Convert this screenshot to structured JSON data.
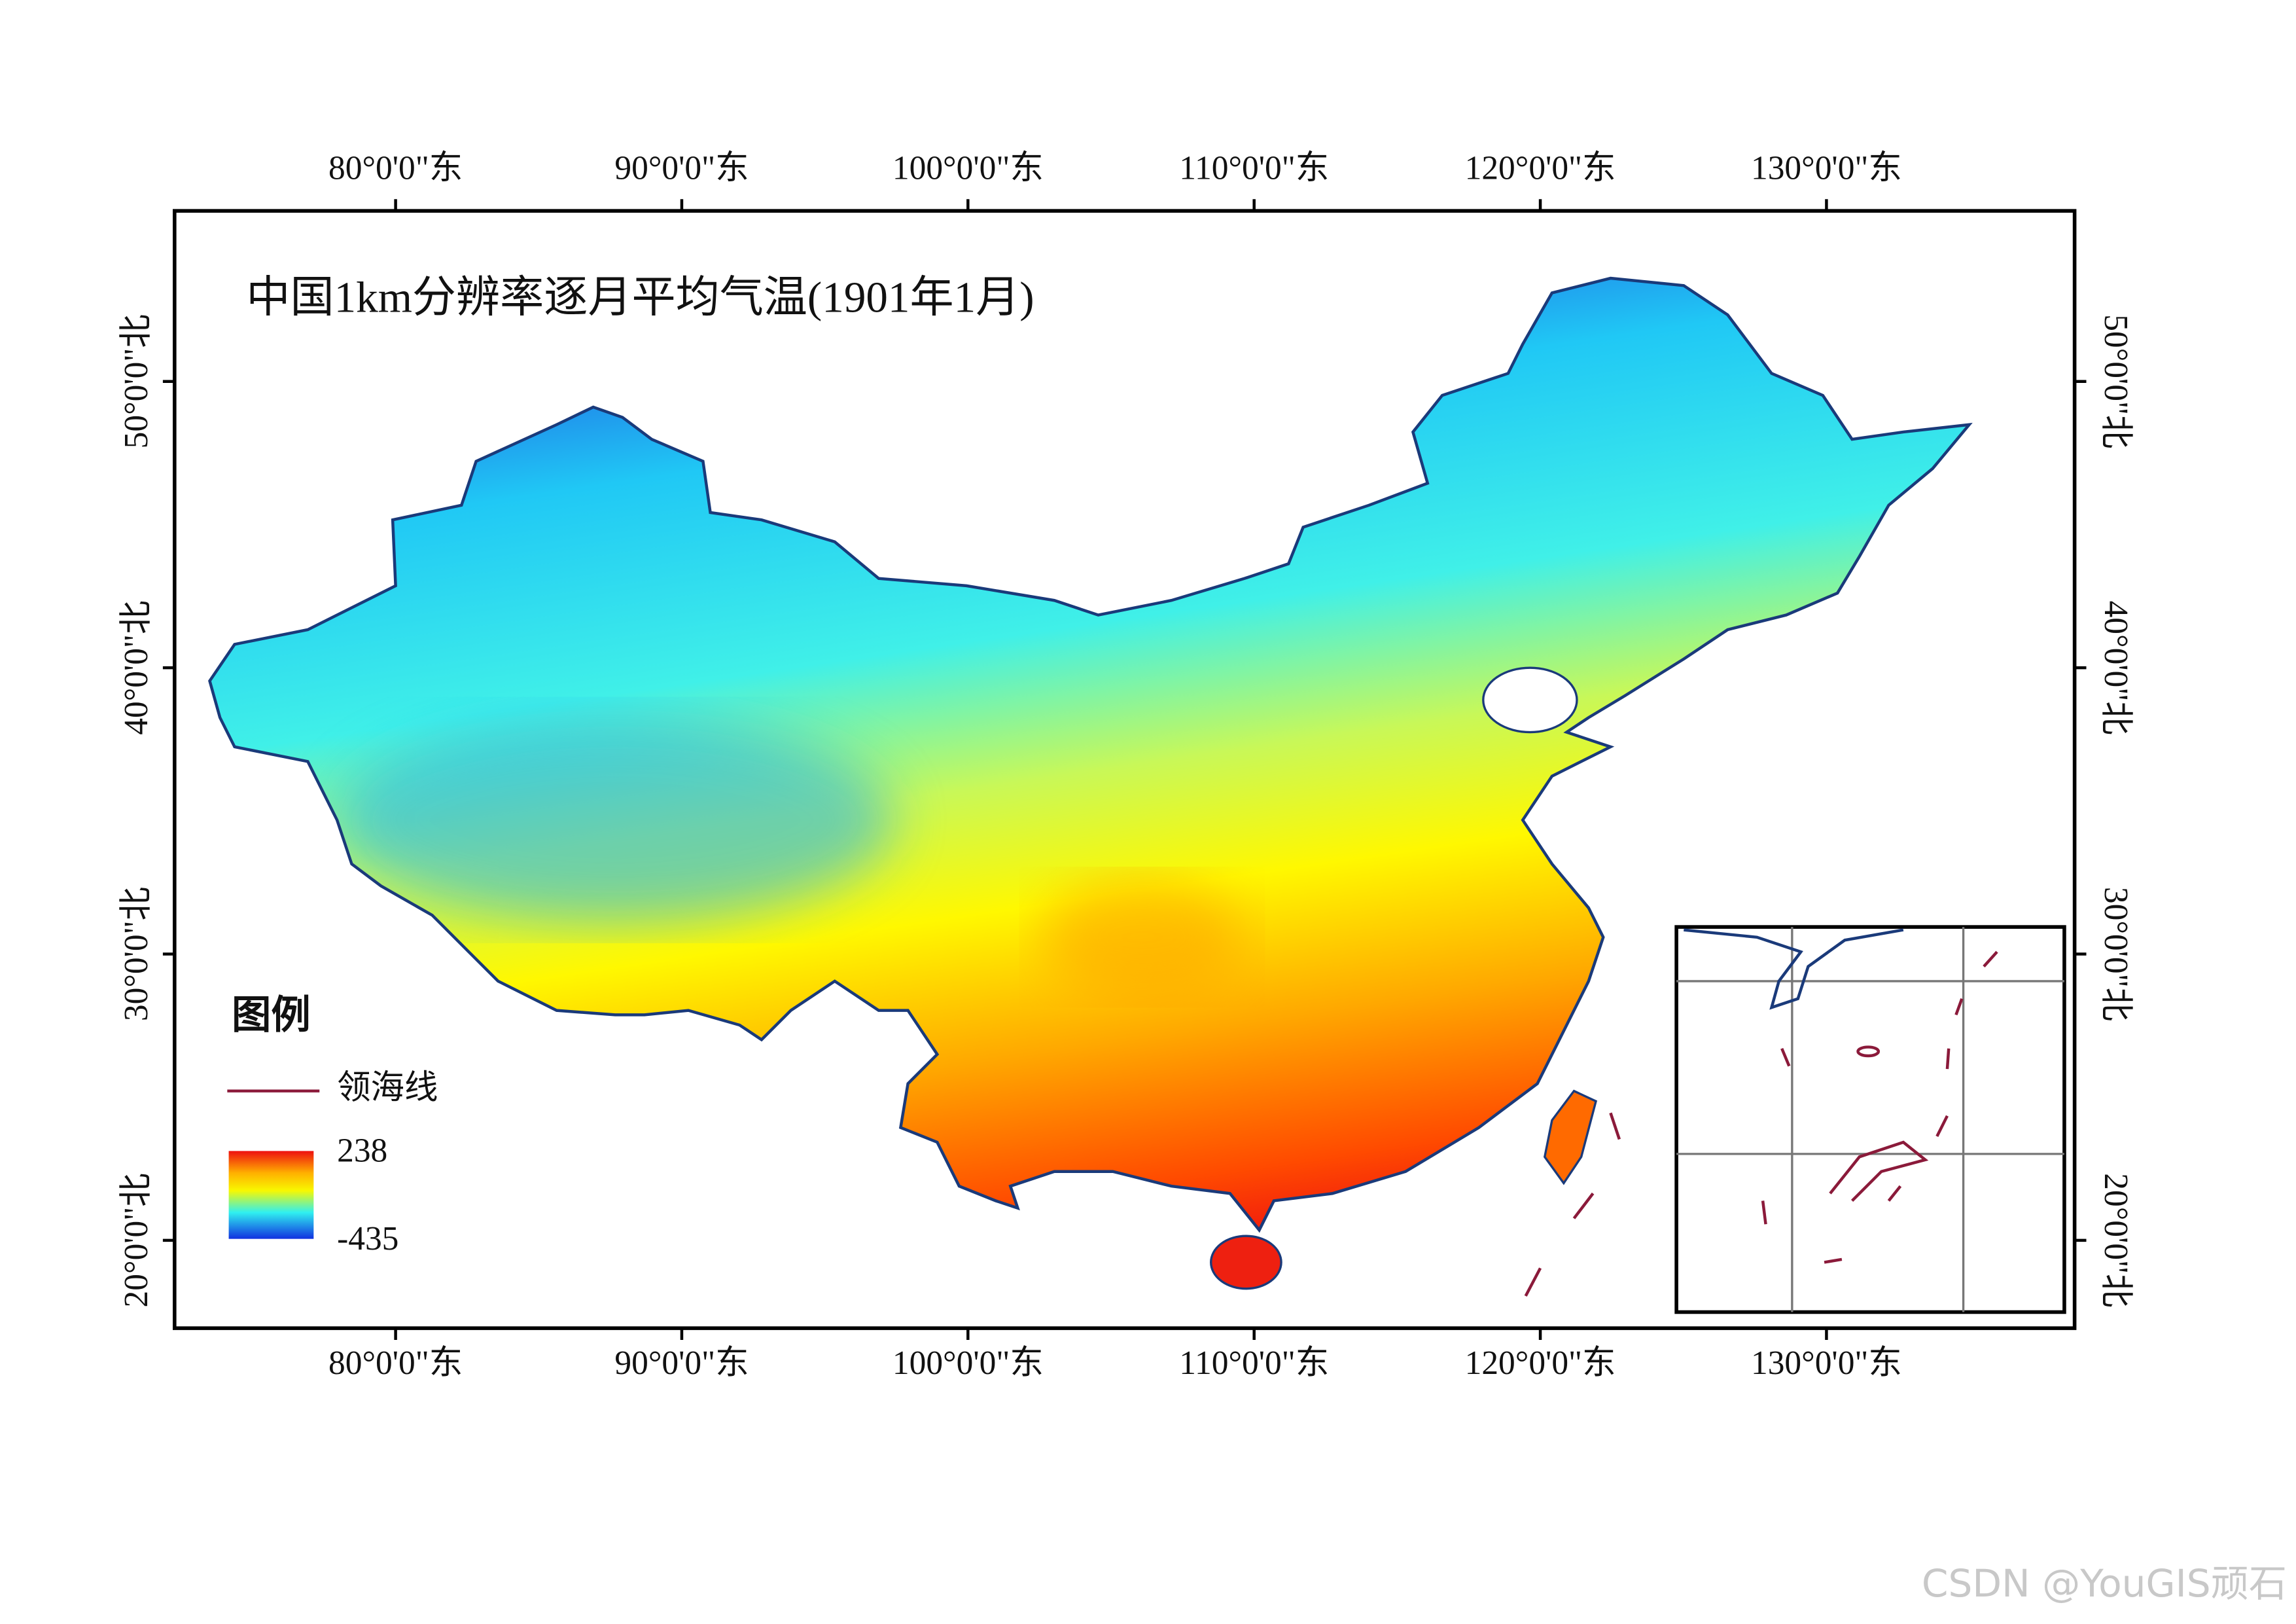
{
  "map": {
    "title": "中国1km分辨率逐月平均气温(1901年1月)",
    "lon_ticks": [
      {
        "value": 80,
        "label": "80°0'0\"东"
      },
      {
        "value": 90,
        "label": "90°0'0\"东"
      },
      {
        "value": 100,
        "label": "100°0'0\"东"
      },
      {
        "value": 110,
        "label": "110°0'0\"东"
      },
      {
        "value": 120,
        "label": "120°0'0\"东"
      },
      {
        "value": 130,
        "label": "130°0'0\"东"
      }
    ],
    "lat_ticks": [
      {
        "value": 20,
        "label": "20°0'0\"北"
      },
      {
        "value": 30,
        "label": "30°0'0\"北"
      },
      {
        "value": 40,
        "label": "40°0'0\"北"
      },
      {
        "value": 50,
        "label": "50°0'0\"北"
      }
    ],
    "legend": {
      "title": "图例",
      "line_label": "领海线",
      "max": 238,
      "min": -435
    },
    "watermark": "CSDN @YouGIS顽石"
  }
}
